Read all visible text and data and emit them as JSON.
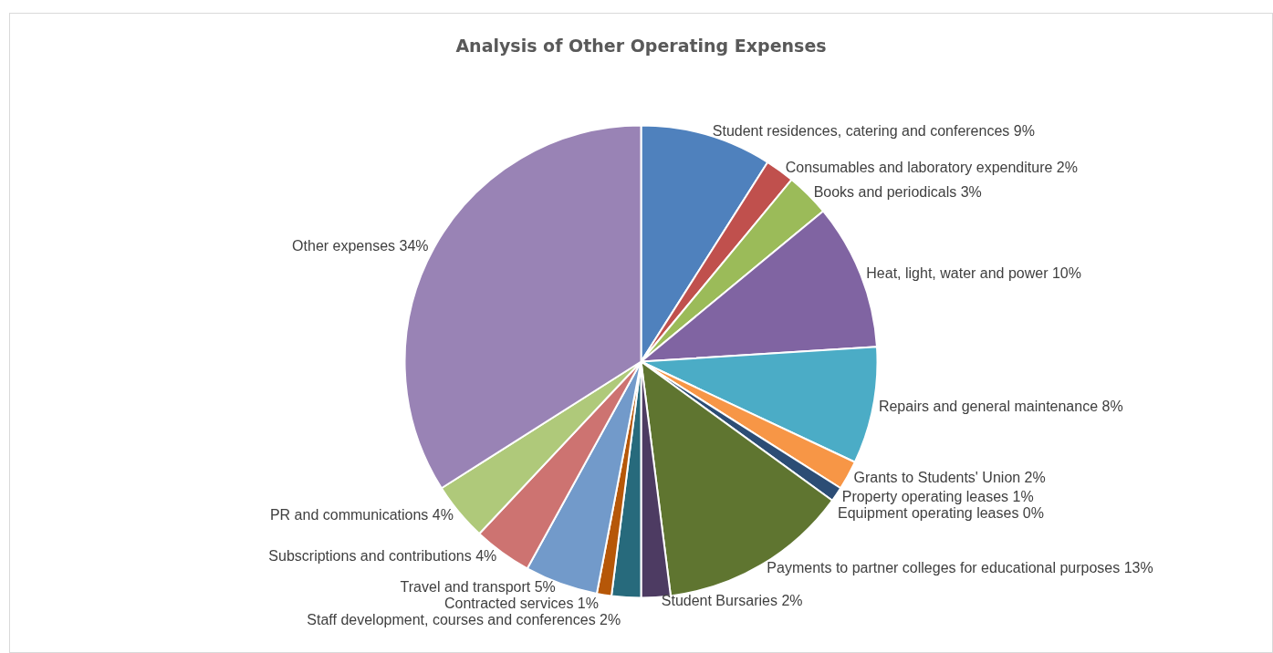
{
  "chart_data": {
    "type": "pie",
    "title": "Analysis of Other Operating Expenses",
    "categories": [
      "Student residences, catering and conferences",
      "Consumables and laboratory expenditure",
      "Books and periodicals",
      "Heat, light, water and power",
      "Repairs and general maintenance",
      "Grants to Students' Union",
      "Property operating leases",
      "Equipment operating leases",
      "Payments to partner colleges for educational purposes",
      "Student Bursaries",
      "Staff development, courses and conferences",
      "Contracted services",
      "Travel and transport",
      "Subscriptions and contributions",
      "PR and communications",
      "Other expenses"
    ],
    "values": [
      9,
      2,
      3,
      10,
      8,
      2,
      1,
      0,
      13,
      2,
      2,
      1,
      5,
      4,
      4,
      34
    ],
    "value_labels": [
      "9%",
      "2%",
      "3%",
      "10%",
      "8%",
      "2%",
      "1%",
      "0%",
      "13%",
      "2%",
      "2%",
      "1%",
      "5%",
      "4%",
      "4%",
      "34%"
    ],
    "colors": [
      "#4f81bd",
      "#c0504d",
      "#9bbb59",
      "#8064a2",
      "#4bacc6",
      "#f79646",
      "#2c4d75",
      "#772c2a",
      "#5f7530",
      "#4d3b62",
      "#276a7c",
      "#b65708",
      "#729aca",
      "#cd7371",
      "#afc97a",
      "#9983b5"
    ],
    "legend": false
  }
}
